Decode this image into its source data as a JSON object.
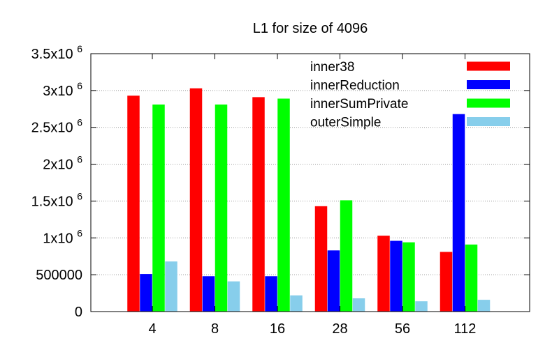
{
  "chart_data": {
    "type": "bar",
    "title": "L1 for size of 4096",
    "xlabel": "",
    "ylabel": "",
    "categories": [
      "4",
      "8",
      "16",
      "28",
      "56",
      "112"
    ],
    "ylim": [
      0,
      3500000
    ],
    "yticks": [
      {
        "value": 0,
        "base": "0",
        "exp": ""
      },
      {
        "value": 500000,
        "base": "500000",
        "exp": ""
      },
      {
        "value": 1000000,
        "base": "1x10",
        "exp": "6"
      },
      {
        "value": 1500000,
        "base": "1.5x10",
        "exp": "6"
      },
      {
        "value": 2000000,
        "base": "2x10",
        "exp": "6"
      },
      {
        "value": 2500000,
        "base": "2.5x10",
        "exp": "6"
      },
      {
        "value": 3000000,
        "base": "3x10",
        "exp": "6"
      },
      {
        "value": 3500000,
        "base": "3.5x10",
        "exp": "6"
      }
    ],
    "grid": true,
    "legend_position": "top-right",
    "series": [
      {
        "name": "inner38",
        "color": "#ff0000",
        "values": [
          2930000,
          3030000,
          2910000,
          1430000,
          1030000,
          810000
        ]
      },
      {
        "name": "innerReduction",
        "color": "#0000ff",
        "values": [
          510000,
          480000,
          480000,
          830000,
          960000,
          2680000
        ]
      },
      {
        "name": "innerSumPrivate",
        "color": "#00ff00",
        "values": [
          2810000,
          2810000,
          2890000,
          1510000,
          940000,
          910000
        ]
      },
      {
        "name": "outerSimple",
        "color": "#87ceeb",
        "values": [
          680000,
          410000,
          220000,
          180000,
          140000,
          160000
        ]
      }
    ]
  }
}
